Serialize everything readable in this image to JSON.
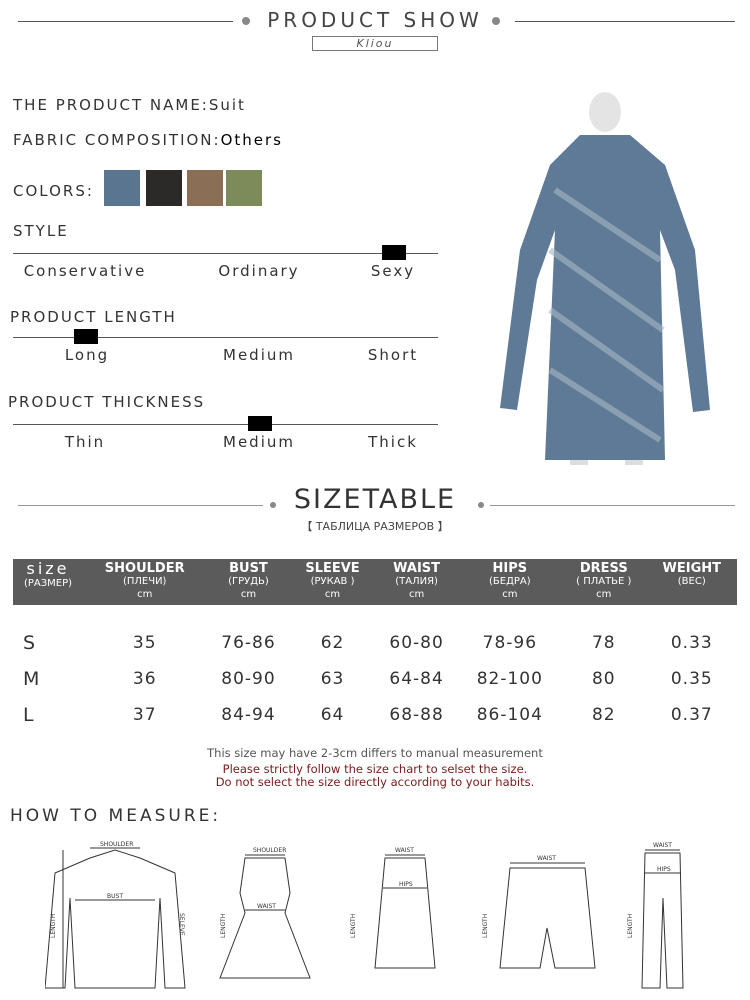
{
  "header": {
    "title": "PRODUCT SHOW",
    "brand": "Kliou"
  },
  "product": {
    "name_label": "THE PRODUCT NAME:",
    "name": "Suit",
    "fabric_label": "FABRIC COMPOSITION:",
    "fabric": "Others",
    "colors_label": "COLORS:",
    "colors": [
      "#5a7590",
      "#2c2a28",
      "#8a6e55",
      "#7d8a5a"
    ]
  },
  "style": {
    "label": "STYLE",
    "options": [
      "Conservative",
      "Ordinary",
      "Sexy"
    ],
    "selected": "Sexy"
  },
  "length": {
    "label": "PRODUCT LENGTH",
    "options": [
      "Long",
      "Medium",
      "Short"
    ],
    "selected": "Long"
  },
  "thickness": {
    "label": "PRODUCT THICKNESS",
    "options": [
      "Thin",
      "Medium",
      "Thick"
    ],
    "selected": "Medium"
  },
  "sizetable": {
    "title": "SIZETABLE",
    "subtitle": "【 ТАБЛИЦА РАЗМЕРОВ 】",
    "headers": [
      {
        "en": "size",
        "ru": "(РАЗМЕР)",
        "unit": ""
      },
      {
        "en": "SHOULDER",
        "ru": "(ПЛЕЧИ)",
        "unit": "cm"
      },
      {
        "en": "BUST",
        "ru": "(ГРУДЬ)",
        "unit": "cm"
      },
      {
        "en": "SLEEVE",
        "ru": "(РУКАВ )",
        "unit": "cm"
      },
      {
        "en": "WAIST",
        "ru": "(ТАЛИЯ)",
        "unit": "cm"
      },
      {
        "en": "HIPS",
        "ru": "(БЕДРА)",
        "unit": "cm"
      },
      {
        "en": "DRESS",
        "ru": "( ПЛАТЬЕ )",
        "unit": "cm"
      },
      {
        "en": "WEIGHT",
        "ru": "(ВЕС)",
        "unit": ""
      }
    ],
    "rows": [
      [
        "S",
        "35",
        "76-86",
        "62",
        "60-80",
        "78-96",
        "78",
        "0.33"
      ],
      [
        "M",
        "36",
        "80-90",
        "63",
        "64-84",
        "82-100",
        "80",
        "0.35"
      ],
      [
        "L",
        "37",
        "84-94",
        "64",
        "68-88",
        "86-104",
        "82",
        "0.37"
      ]
    ]
  },
  "notes": [
    "This size may have 2-3cm differs to manual measurement",
    "Please strictly follow the size chart to selset the size.",
    "Do not select the size directly according to your habits."
  ],
  "measure": {
    "title": "HOW TO MEASURE:",
    "labels": {
      "shoulder": "SHOULDER",
      "bust": "BUST",
      "length": "LENGTH",
      "sleeve": "SELEVE",
      "waist": "WAIST",
      "hips": "HIPS"
    }
  }
}
